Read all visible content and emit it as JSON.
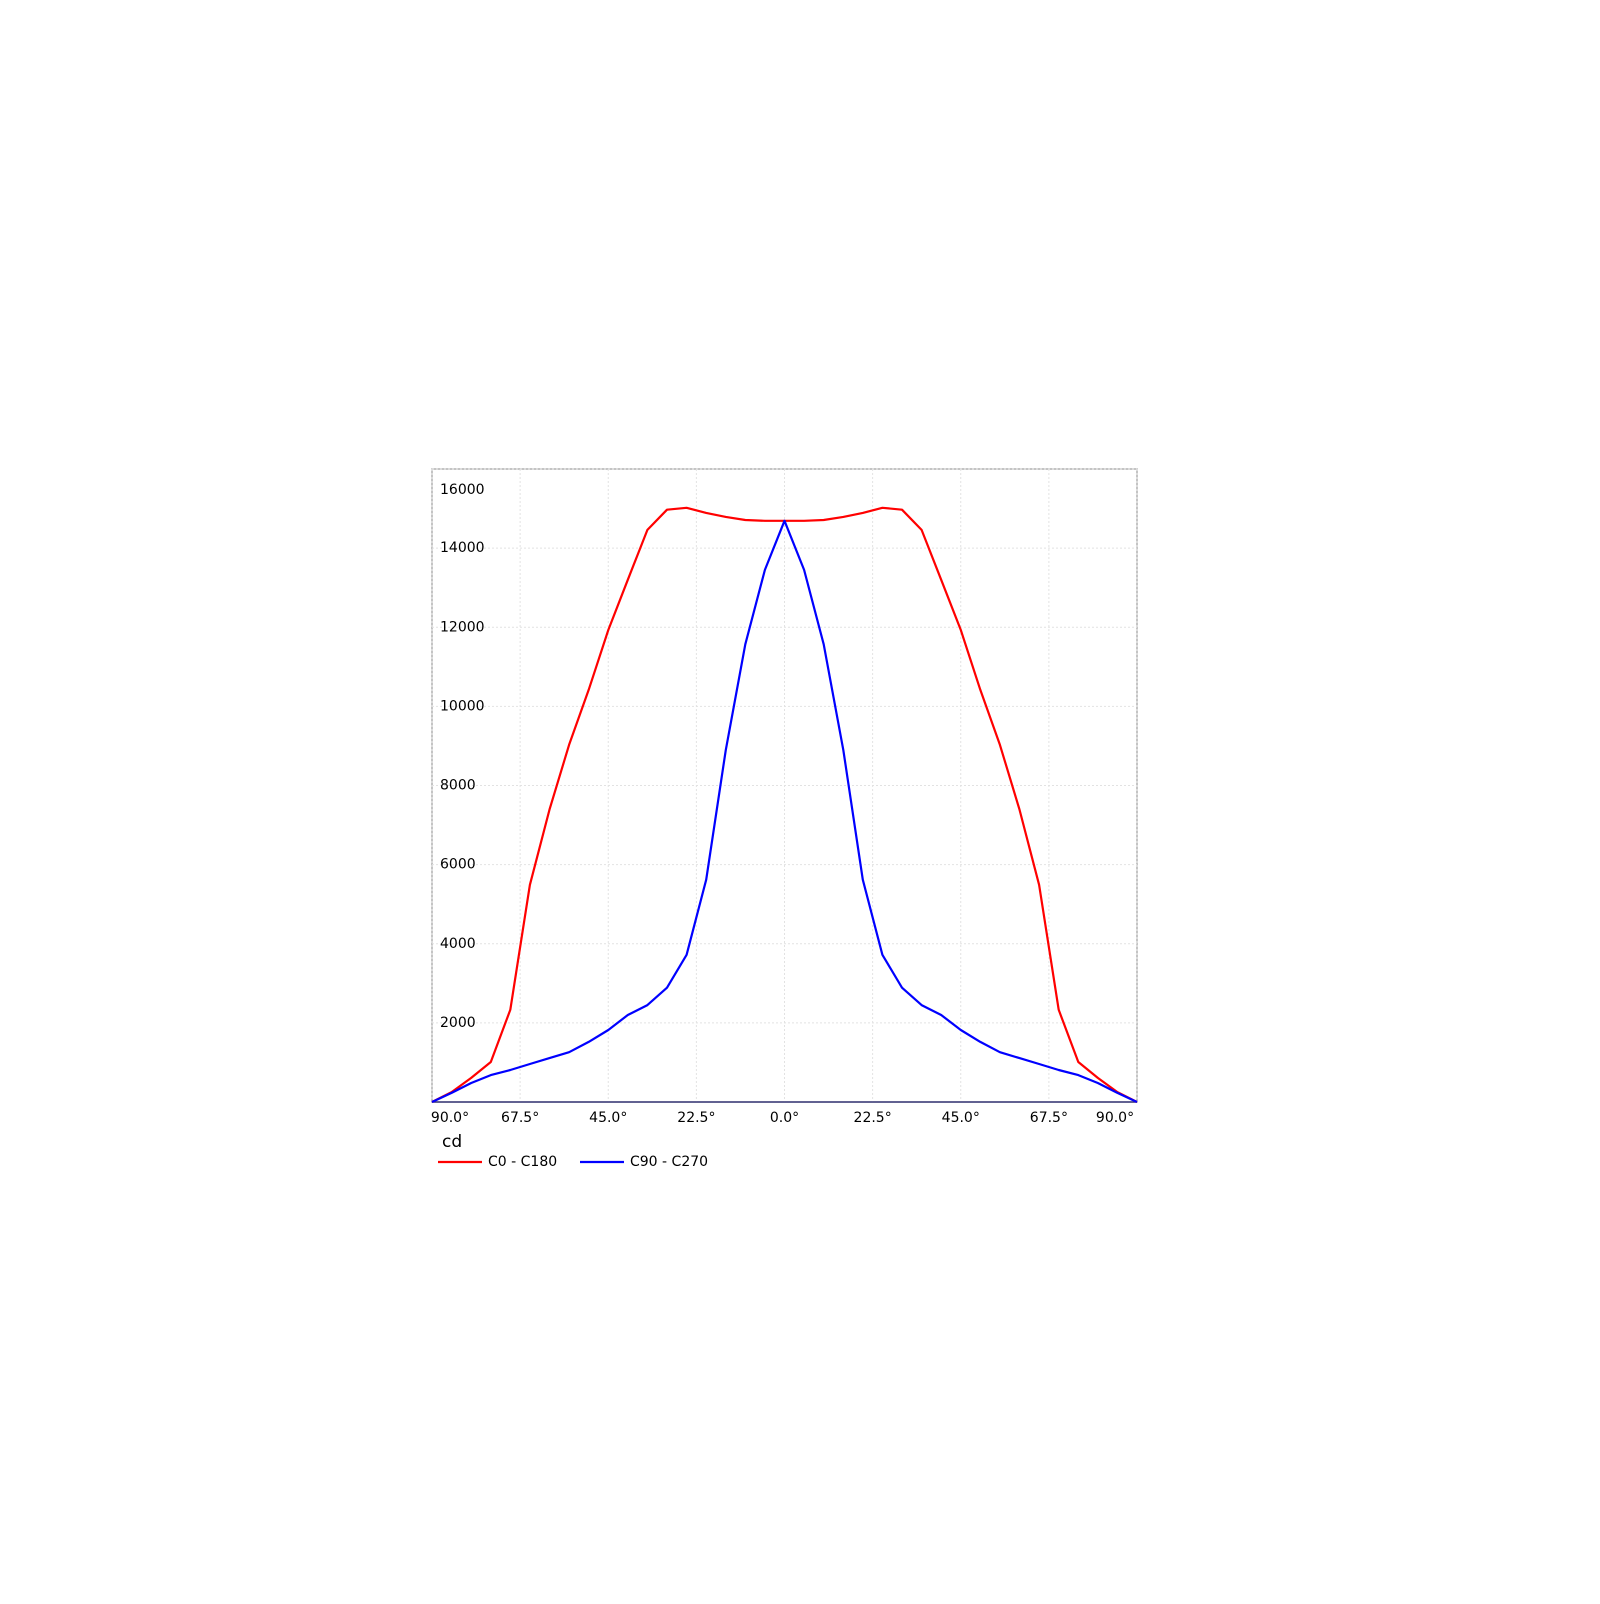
{
  "chart_data": {
    "type": "line",
    "y_label": "cd",
    "x": [
      -90,
      -85,
      -80,
      -75,
      -70,
      -65,
      -60,
      -55,
      -50,
      -45,
      -40,
      -35,
      -30,
      -25,
      -20,
      -15,
      -10,
      -5,
      0,
      5,
      10,
      15,
      20,
      25,
      30,
      35,
      40,
      45,
      50,
      55,
      60,
      65,
      70,
      75,
      80,
      85,
      90
    ],
    "series": [
      {
        "name": "C0 - C180",
        "color": "#ff0000",
        "values": [
          0,
          250,
          610,
          1010,
          2330,
          5490,
          7390,
          9030,
          10420,
          11930,
          13200,
          14460,
          14970,
          15020,
          14890,
          14790,
          14710,
          14690,
          14690,
          14690,
          14710,
          14790,
          14890,
          15020,
          14970,
          14460,
          13200,
          11930,
          10420,
          9030,
          7390,
          5490,
          2330,
          1010,
          610,
          250,
          0
        ]
      },
      {
        "name": "C90 - C270",
        "color": "#0000ff",
        "values": [
          0,
          230,
          480,
          680,
          810,
          960,
          1110,
          1260,
          1520,
          1820,
          2200,
          2450,
          2890,
          3720,
          5620,
          8900,
          11570,
          13450,
          14690,
          13450,
          11570,
          8900,
          5620,
          3720,
          2890,
          2450,
          2200,
          1820,
          1520,
          1260,
          1110,
          960,
          810,
          680,
          480,
          230,
          0
        ]
      }
    ],
    "xlim": [
      -90,
      90
    ],
    "xticks": [
      {
        "value": -90,
        "label": "90.0°"
      },
      {
        "value": -67.5,
        "label": "67.5°"
      },
      {
        "value": -45,
        "label": "45.0°"
      },
      {
        "value": -22.5,
        "label": "22.5°"
      },
      {
        "value": 0,
        "label": "0.0°"
      },
      {
        "value": 22.5,
        "label": "22.5°"
      },
      {
        "value": 45,
        "label": "45.0°"
      },
      {
        "value": 67.5,
        "label": "67.5°"
      },
      {
        "value": 90,
        "label": "90.0°"
      }
    ],
    "ylim": [
      0,
      16000
    ],
    "yticks": [
      2000,
      4000,
      6000,
      8000,
      10000,
      12000,
      14000,
      16000
    ],
    "grid": true,
    "legend": "bottom"
  }
}
